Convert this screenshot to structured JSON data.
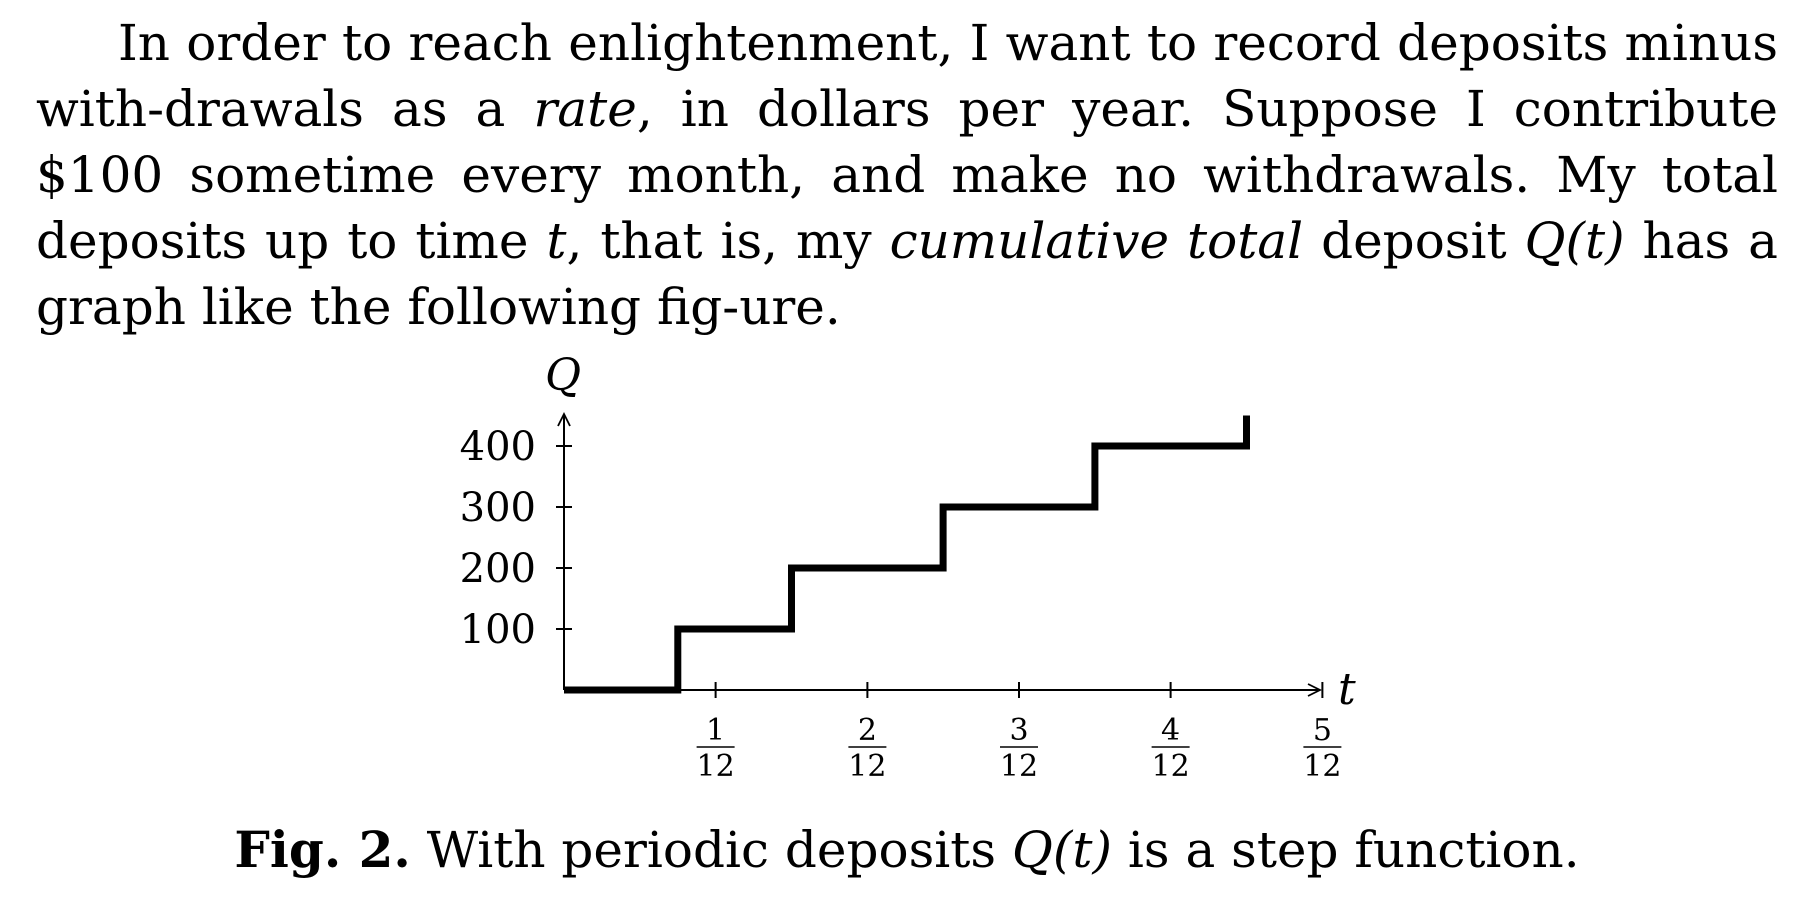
{
  "paragraph": {
    "part1": "In order to reach enlightenment, I want to record deposits minus with-drawals as a ",
    "em1": "rate",
    "part2": ", in dollars per year. Suppose I contribute $100 sometime every month, and make no withdrawals. My total deposits up to time ",
    "var_t": "t",
    "part3": ", that is, my ",
    "em2": "cumulative total",
    "part4": " deposit ",
    "func": "Q(t)",
    "part5": " has a graph like the following fig-ure."
  },
  "chart_data": {
    "type": "line",
    "step": true,
    "xlabel": "t",
    "ylabel": "Q",
    "x_ticks": [
      {
        "value": 0.0833,
        "num": "1",
        "den": "12"
      },
      {
        "value": 0.1667,
        "num": "2",
        "den": "12"
      },
      {
        "value": 0.25,
        "num": "3",
        "den": "12"
      },
      {
        "value": 0.3333,
        "num": "4",
        "den": "12"
      },
      {
        "value": 0.4167,
        "num": "5",
        "den": "12"
      }
    ],
    "y_ticks": [
      100,
      200,
      300,
      400
    ],
    "xlim": [
      0,
      0.4167
    ],
    "ylim": [
      0,
      400
    ],
    "series": [
      {
        "points": [
          [
            0,
            0
          ],
          [
            0.0625,
            0
          ],
          [
            0.0625,
            100
          ],
          [
            0.125,
            100
          ],
          [
            0.125,
            200
          ],
          [
            0.2083,
            200
          ],
          [
            0.2083,
            300
          ],
          [
            0.2917,
            300
          ],
          [
            0.2917,
            400
          ],
          [
            0.375,
            400
          ],
          [
            0.375,
            450
          ]
        ]
      }
    ]
  },
  "caption": {
    "label": "Fig. 2.",
    "text_before": " With periodic deposits ",
    "func": "Q(t)",
    "text_after": " is a step function."
  }
}
